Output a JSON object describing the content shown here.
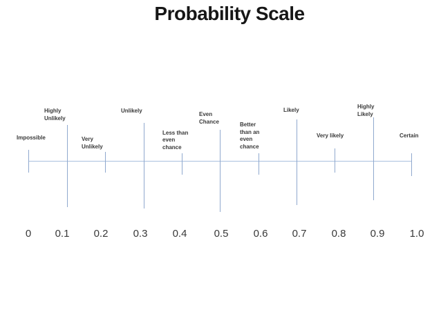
{
  "slide": {
    "title": "Probability Scale"
  },
  "scale": {
    "axis_range": [
      "0",
      "1.0"
    ],
    "points": [
      {
        "value": "0",
        "label": "Impossible",
        "label_lines": [
          "Impossible"
        ]
      },
      {
        "value": "0.1",
        "label": "Highly Unlikely",
        "label_lines": [
          "Highly",
          "Unlikely"
        ]
      },
      {
        "value": "0.2",
        "label": "Very Unlikely",
        "label_lines": [
          "Very",
          "Unlikely"
        ]
      },
      {
        "value": "0.3",
        "label": "Unlikely",
        "label_lines": [
          "Unlikely"
        ]
      },
      {
        "value": "0.4",
        "label": "Less than even chance",
        "label_lines": [
          "Less than",
          "even",
          "chance"
        ]
      },
      {
        "value": "0.5",
        "label": "Even Chance",
        "label_lines": [
          "Even",
          "Chance"
        ]
      },
      {
        "value": "0.6",
        "label": "Better than an even chance",
        "label_lines": [
          "Better",
          "than an",
          "even",
          "chance"
        ]
      },
      {
        "value": "0.7",
        "label": "Likely",
        "label_lines": [
          "Likely"
        ]
      },
      {
        "value": "0.8",
        "label": "Very likely",
        "label_lines": [
          "Very likely"
        ]
      },
      {
        "value": "0.9",
        "label": "Highly Likely",
        "label_lines": [
          "Highly",
          "Likely"
        ]
      },
      {
        "value": "1.0",
        "label": "Certain",
        "label_lines": [
          "Certain"
        ]
      }
    ]
  },
  "colors": {
    "axis_line": "#A9BFDE",
    "tick_line": "#8FA8CE",
    "text": "#383838",
    "title": "#161616"
  }
}
